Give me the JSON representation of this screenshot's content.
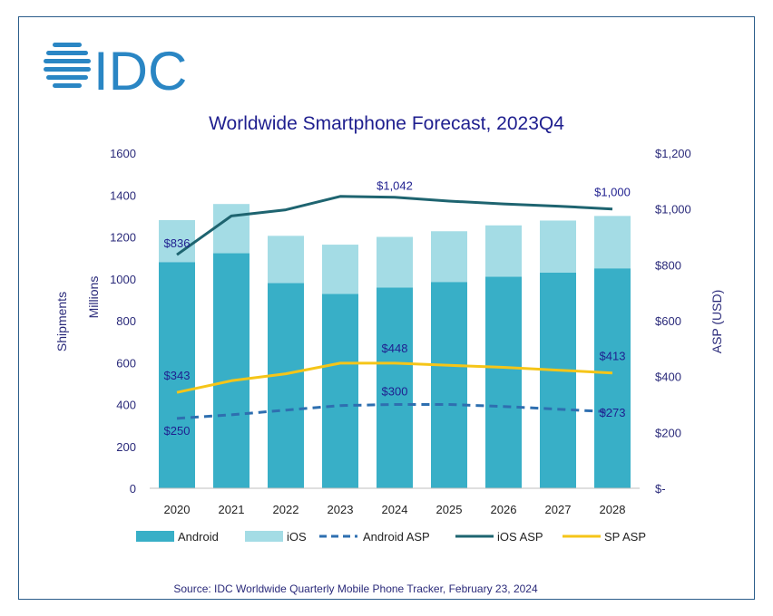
{
  "logo": {
    "text": "IDC"
  },
  "source": "Source:  IDC Worldwide Quarterly Mobile Phone Tracker, February 23, 2024",
  "colors": {
    "android": "#38AFC7",
    "ios": "#A4DCE5",
    "android_asp": "#2E6FB0",
    "ios_asp": "#1E6470",
    "sp_asp": "#F5C518",
    "title": "#1F1F8F",
    "axis_text": "#2A2A7A",
    "logo": "#2A86C4",
    "frame": "#2B5D8A"
  },
  "chart_data": {
    "type": "bar",
    "stacked": true,
    "title": "Worldwide Smartphone Forecast, 2023Q4",
    "ylabel": "Shipments",
    "ylabel_sub": "Millions",
    "y2label": "ASP (USD)",
    "categories": [
      "2020",
      "2021",
      "2022",
      "2023",
      "2024",
      "2025",
      "2026",
      "2027",
      "2028"
    ],
    "ylim": [
      0,
      1600
    ],
    "y_ticks": [
      0,
      200,
      400,
      600,
      800,
      1000,
      1200,
      1400,
      1600
    ],
    "y_tick_labels": [
      "0",
      "200",
      "400",
      "600",
      "800",
      "1000",
      "1200",
      "1400",
      "1600"
    ],
    "y2lim": [
      0,
      1200
    ],
    "y2_ticks": [
      0,
      200,
      400,
      600,
      800,
      1000,
      1200
    ],
    "y2_tick_labels": [
      "$-",
      "$200",
      "$400",
      "$600",
      "$800",
      "$1,000",
      "$1,200"
    ],
    "series": [
      {
        "name": "Android",
        "kind": "bar",
        "axis": "left",
        "values": [
          1080,
          1122,
          980,
          928,
          958,
          985,
          1010,
          1030,
          1050
        ]
      },
      {
        "name": "iOS",
        "kind": "bar",
        "axis": "left",
        "values": [
          200,
          235,
          225,
          235,
          242,
          242,
          245,
          248,
          250
        ]
      },
      {
        "name": "Android ASP",
        "kind": "line",
        "style": "dashed",
        "axis": "right",
        "values": [
          250,
          263,
          280,
          296,
          300,
          300,
          293,
          283,
          273
        ]
      },
      {
        "name": "iOS ASP",
        "kind": "line",
        "style": "solid",
        "axis": "right",
        "values": [
          836,
          975,
          997,
          1045,
          1042,
          1028,
          1018,
          1010,
          1000
        ]
      },
      {
        "name": "SP ASP",
        "kind": "line",
        "style": "solid",
        "axis": "right",
        "values": [
          343,
          385,
          410,
          448,
          448,
          440,
          433,
          423,
          413
        ]
      }
    ],
    "annotations": [
      {
        "series": "iOS ASP",
        "index": 0,
        "text": "$836"
      },
      {
        "series": "iOS ASP",
        "index": 4,
        "text": "$1,042"
      },
      {
        "series": "iOS ASP",
        "index": 8,
        "text": "$1,000"
      },
      {
        "series": "SP ASP",
        "index": 0,
        "text": "$343"
      },
      {
        "series": "SP ASP",
        "index": 4,
        "text": "$448"
      },
      {
        "series": "SP ASP",
        "index": 8,
        "text": "$413"
      },
      {
        "series": "Android ASP",
        "index": 0,
        "text": "$250"
      },
      {
        "series": "Android ASP",
        "index": 4,
        "text": "$300"
      },
      {
        "series": "Android ASP",
        "index": 8,
        "text": "$273"
      }
    ],
    "legend": [
      "Android",
      "iOS",
      "Android ASP",
      "iOS ASP",
      "SP ASP"
    ],
    "legend_position": "bottom"
  }
}
